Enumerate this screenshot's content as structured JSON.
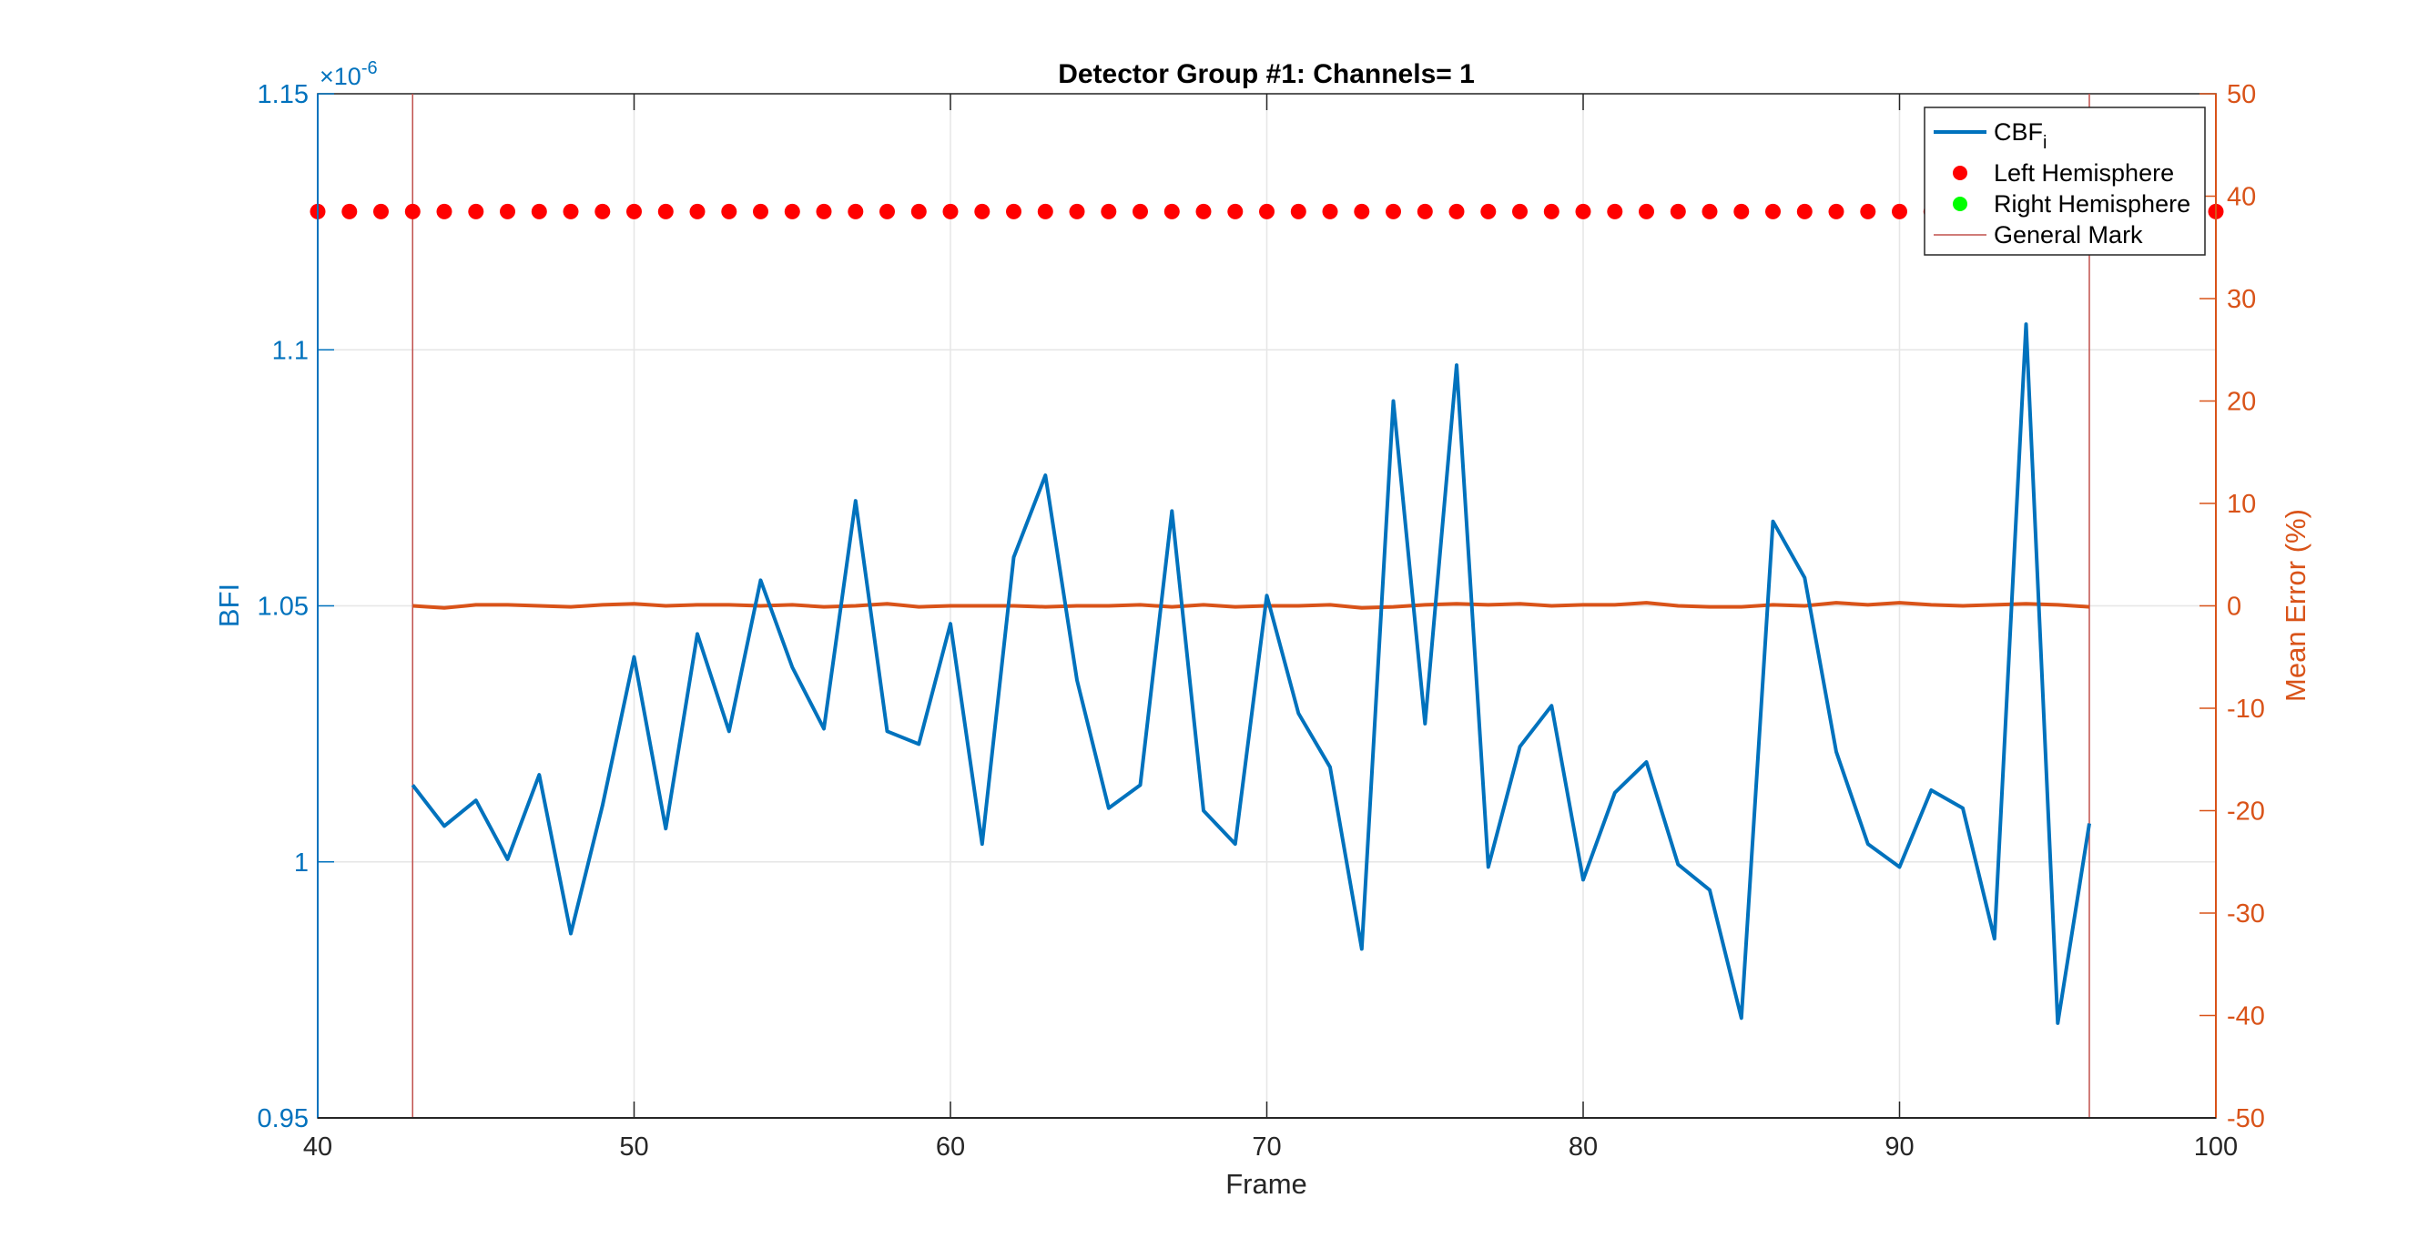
{
  "chart_data": {
    "type": "line",
    "title": "Detector Group #1: Channels= 1",
    "xlabel": "Frame",
    "ylabel_left": "BFI",
    "ylabel_right": "Mean Error (%)",
    "y_left_exponent_base": "×10",
    "y_left_exponent_power": "-6",
    "xlim": [
      40,
      100
    ],
    "ylim_left": [
      0.95,
      1.15
    ],
    "ylim_right": [
      -50,
      50
    ],
    "x_ticks": [
      "40",
      "50",
      "60",
      "70",
      "80",
      "90",
      "100"
    ],
    "y_left_ticks": [
      "0.95",
      "1",
      "1.05",
      "1.1",
      "1.15"
    ],
    "y_right_ticks": [
      "-50",
      "-40",
      "-30",
      "-20",
      "-10",
      "0",
      "10",
      "20",
      "30",
      "40",
      "50"
    ],
    "grid": true,
    "legend_position": "top-right",
    "colors": {
      "left_axis": "#0072BD",
      "right_axis": "#D95319",
      "left_hemisphere": "#FF0000",
      "right_hemisphere": "#00FF00",
      "general_mark": "#C0504D",
      "grid": "#E6E6E6"
    },
    "legend": [
      {
        "key": "cbf",
        "label": "CBF",
        "sub": "i",
        "marker": "line",
        "color": "#0072BD"
      },
      {
        "key": "left",
        "label": "Left Hemisphere",
        "marker": "dot",
        "color": "#FF0000"
      },
      {
        "key": "right",
        "label": "Right Hemisphere",
        "marker": "dot",
        "color": "#00FF00"
      },
      {
        "key": "mark",
        "label": "General Mark",
        "marker": "thinline",
        "color": "#C0504D"
      }
    ],
    "series": [
      {
        "name": "CBFi",
        "axis": "left",
        "x": [
          43,
          44,
          45,
          46,
          47,
          48,
          49,
          50,
          51,
          52,
          53,
          54,
          55,
          56,
          57,
          58,
          59,
          60,
          61,
          62,
          63,
          64,
          65,
          66,
          67,
          68,
          69,
          70,
          71,
          72,
          73,
          74,
          75,
          76,
          77,
          78,
          79,
          80,
          81,
          82,
          83,
          84,
          85,
          86,
          87,
          88,
          89,
          90,
          91,
          92,
          93,
          94,
          95,
          96
        ],
        "values": [
          1.015,
          1.007,
          1.012,
          1.0005,
          1.017,
          0.986,
          1.011,
          1.04,
          1.0065,
          1.0445,
          1.0255,
          1.055,
          1.038,
          1.026,
          1.0705,
          1.0255,
          1.023,
          1.0465,
          1.0035,
          1.0595,
          1.0755,
          1.0355,
          1.0105,
          1.015,
          1.0685,
          1.01,
          1.0035,
          1.052,
          1.029,
          1.0185,
          0.983,
          1.09,
          1.027,
          1.097,
          0.999,
          1.0225,
          1.0305,
          0.9965,
          1.0135,
          1.0195,
          0.9995,
          0.9945,
          0.9695,
          1.0665,
          1.0555,
          1.0215,
          1.0035,
          0.999,
          1.014,
          1.0105,
          0.985,
          1.105,
          0.9685,
          1.0075
        ]
      },
      {
        "name": "Left Hemisphere",
        "axis": "right",
        "x": [
          40,
          41,
          42,
          43,
          44,
          45,
          46,
          47,
          48,
          49,
          50,
          51,
          52,
          53,
          54,
          55,
          56,
          57,
          58,
          59,
          60,
          61,
          62,
          63,
          64,
          65,
          66,
          67,
          68,
          69,
          70,
          71,
          72,
          73,
          74,
          75,
          76,
          77,
          78,
          79,
          80,
          81,
          82,
          83,
          84,
          85,
          86,
          87,
          88,
          89,
          90,
          91,
          92,
          93,
          94,
          95,
          96,
          97,
          98,
          99,
          100
        ],
        "values": [
          38.5,
          38.5,
          38.5,
          38.5,
          38.5,
          38.5,
          38.5,
          38.5,
          38.5,
          38.5,
          38.5,
          38.5,
          38.5,
          38.5,
          38.5,
          38.5,
          38.5,
          38.5,
          38.5,
          38.5,
          38.5,
          38.5,
          38.5,
          38.5,
          38.5,
          38.5,
          38.5,
          38.5,
          38.5,
          38.5,
          38.5,
          38.5,
          38.5,
          38.5,
          38.5,
          38.5,
          38.5,
          38.5,
          38.5,
          38.5,
          38.5,
          38.5,
          38.5,
          38.5,
          38.5,
          38.5,
          38.5,
          38.5,
          38.5,
          38.5,
          38.5,
          38.5,
          38.5,
          38.5,
          38.5,
          38.5,
          38.5,
          38.5,
          38.5,
          38.5,
          38.5
        ]
      },
      {
        "name": "Mean Error",
        "axis": "right",
        "x": [
          43,
          44,
          45,
          46,
          47,
          48,
          49,
          50,
          51,
          52,
          53,
          54,
          55,
          56,
          57,
          58,
          59,
          60,
          61,
          62,
          63,
          64,
          65,
          66,
          67,
          68,
          69,
          70,
          71,
          72,
          73,
          74,
          75,
          76,
          77,
          78,
          79,
          80,
          81,
          82,
          83,
          84,
          85,
          86,
          87,
          88,
          89,
          90,
          91,
          92,
          93,
          94,
          95,
          96
        ],
        "values": [
          0,
          -0.2,
          0.1,
          0.1,
          0,
          -0.1,
          0.1,
          0.2,
          0,
          0.1,
          0.1,
          0,
          0.1,
          -0.1,
          0,
          0.2,
          -0.1,
          0,
          0,
          0,
          -0.1,
          0,
          0,
          0.1,
          -0.1,
          0.1,
          -0.1,
          0,
          0,
          0.1,
          -0.2,
          -0.1,
          0.1,
          0.2,
          0.1,
          0.2,
          0,
          0.1,
          0.1,
          0.3,
          0,
          -0.1,
          -0.1,
          0.1,
          0,
          0.3,
          0.1,
          0.3,
          0.1,
          0,
          0.1,
          0.2,
          0.1,
          -0.1
        ]
      }
    ],
    "general_marks_x": [
      43,
      96
    ]
  }
}
